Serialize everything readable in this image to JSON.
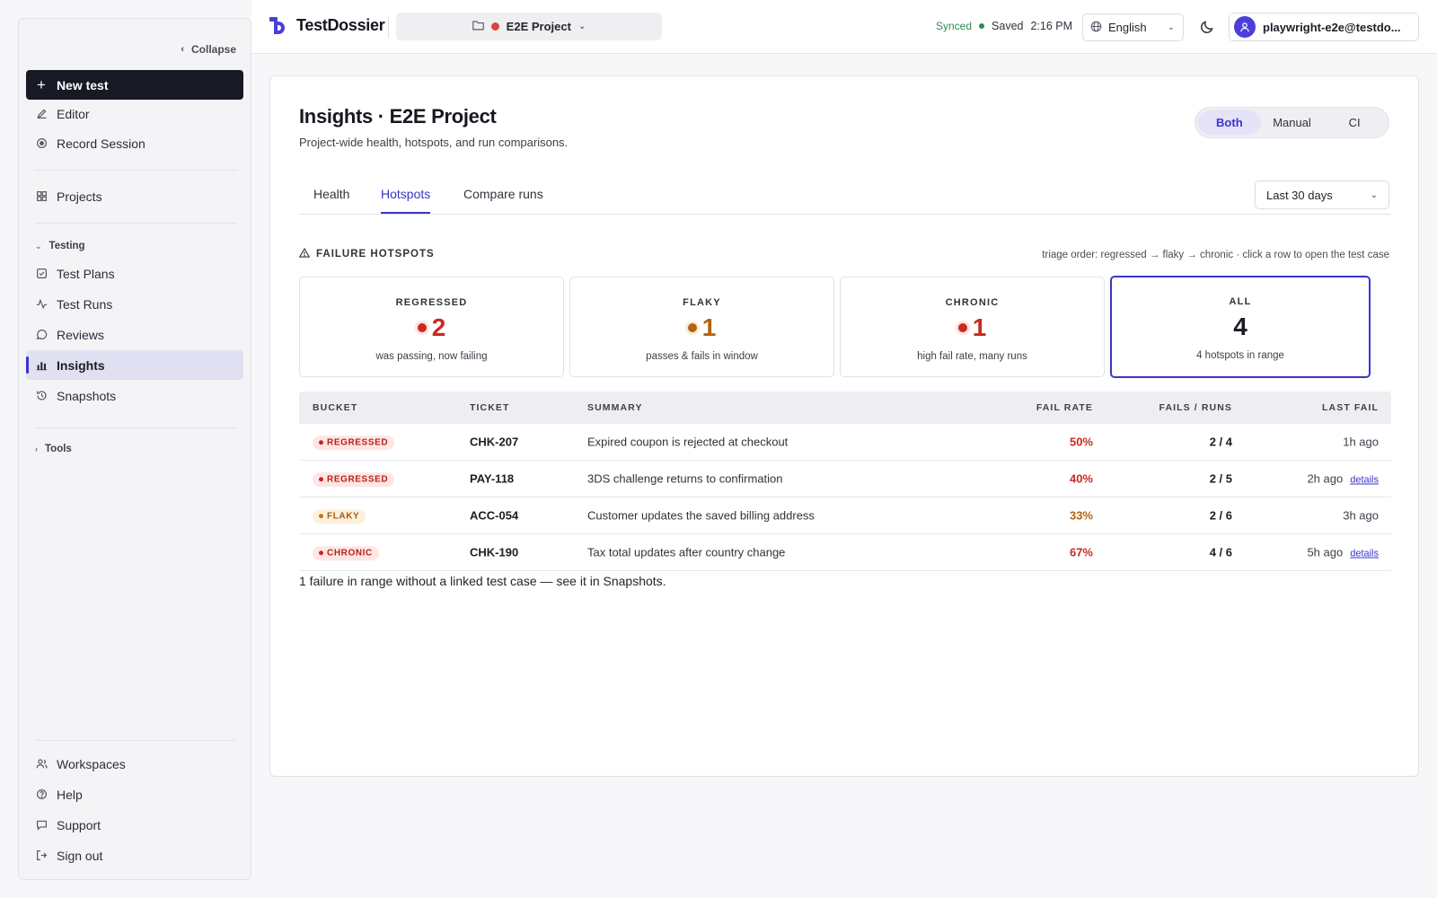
{
  "sidebar": {
    "collapse_label": "Collapse",
    "new_test_label": "New test",
    "items": [
      {
        "label": "Editor"
      },
      {
        "label": "Record Session"
      },
      {
        "label": "Projects"
      },
      {
        "label": "Test Plans"
      },
      {
        "label": "Test Runs"
      },
      {
        "label": "Reviews"
      },
      {
        "label": "Insights"
      },
      {
        "label": "Snapshots"
      },
      {
        "label": "Workspaces"
      },
      {
        "label": "Help"
      },
      {
        "label": "Support"
      },
      {
        "label": "Sign out"
      }
    ],
    "group_testing": "Testing",
    "group_tools": "Tools",
    "active_item": "Insights"
  },
  "topbar": {
    "brand": "TestDossier",
    "project_name": "E2E Project",
    "project_color": "#d9463e",
    "sync_status": "Synced",
    "save_status": "Saved",
    "time": "2:16 PM",
    "language": "English",
    "account": "playwright-e2e@testdo..."
  },
  "page": {
    "title": "Insights · E2E Project",
    "subtitle": "Project-wide health, hotspots, and run comparisons.",
    "segments": [
      "Both",
      "Manual",
      "CI"
    ],
    "active_segment": "Both",
    "tabs": [
      "Health",
      "Hotspots",
      "Compare runs"
    ],
    "active_tab": "Hotspots",
    "range": "Last 30 days",
    "section_label": "FAILURE HOTSPOTS",
    "triage_note": "triage order: regressed → flaky → chronic · click a row to open the test case"
  },
  "stats": [
    {
      "label": "REGRESSED",
      "value": "2",
      "desc": "was passing, now failing",
      "color": "#c92a22"
    },
    {
      "label": "FLAKY",
      "value": "1",
      "desc": "passes & fails in window",
      "color": "#b4640f"
    },
    {
      "label": "CHRONIC",
      "value": "1",
      "desc": "high fail rate, many runs",
      "color": "#c92a22"
    },
    {
      "label": "ALL",
      "value": "4",
      "desc": "4 hotspots in range",
      "color": "#1b1d24"
    }
  ],
  "table": {
    "headers": [
      "BUCKET",
      "TICKET",
      "SUMMARY",
      "FAIL RATE",
      "FAILS / RUNS",
      "LAST FAIL"
    ],
    "rows": [
      {
        "bucket": "REGRESSED",
        "ticket": "CHK-207",
        "summary": "Expired coupon is rejected at checkout",
        "fail_rate": "50%",
        "fails_runs": "2 / 4",
        "last_fail": "1h ago",
        "details": ""
      },
      {
        "bucket": "REGRESSED",
        "ticket": "PAY-118",
        "summary": "3DS challenge returns to confirmation",
        "fail_rate": "40%",
        "fails_runs": "2 / 5",
        "last_fail": "2h ago",
        "details": "details"
      },
      {
        "bucket": "FLAKY",
        "ticket": "ACC-054",
        "summary": "Customer updates the saved billing address",
        "fail_rate": "33%",
        "fails_runs": "2 / 6",
        "last_fail": "3h ago",
        "details": ""
      },
      {
        "bucket": "CHRONIC",
        "ticket": "CHK-190",
        "summary": "Tax total updates after country change",
        "fail_rate": "67%",
        "fails_runs": "4 / 6",
        "last_fail": "5h ago",
        "details": "details"
      }
    ]
  },
  "footnote": "1 failure in range without a linked test case — see it in Snapshots."
}
